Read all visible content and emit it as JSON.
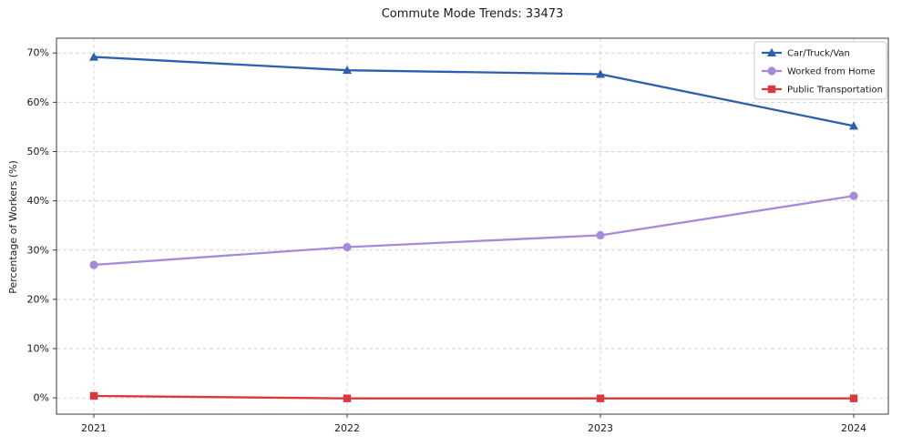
{
  "title": "Commute Mode Trends: 33473",
  "chart_data": {
    "type": "line",
    "x": [
      "2021",
      "2022",
      "2023",
      "2024"
    ],
    "series": [
      {
        "name": "Car/Truck/Van",
        "values": [
          69.2,
          66.5,
          65.7,
          55.2
        ],
        "color": "#2c5fad",
        "marker": "triangle"
      },
      {
        "name": "Worked from Home",
        "values": [
          27.0,
          30.6,
          33.0,
          41.0
        ],
        "color": "#a78bda",
        "marker": "circle"
      },
      {
        "name": "Public Transportation",
        "values": [
          0.4,
          -0.1,
          -0.1,
          -0.1
        ],
        "color": "#d9383c",
        "marker": "square"
      }
    ],
    "xlabel": "",
    "ylabel": "Percentage of Workers (%)",
    "yticks": [
      0,
      10,
      20,
      30,
      40,
      50,
      60,
      70
    ],
    "ytick_labels": [
      "0%",
      "10%",
      "20%",
      "30%",
      "40%",
      "50%",
      "60%",
      "70%"
    ],
    "ylim": [
      -3.3,
      73.0
    ],
    "grid": true,
    "grid_style": "dashed",
    "legend_position": "upper right",
    "colors": {
      "grid": "#d3d3d3",
      "frame": "#3a3a3a",
      "legend_border": "#cccccc",
      "text": "#1a1a1a"
    }
  }
}
